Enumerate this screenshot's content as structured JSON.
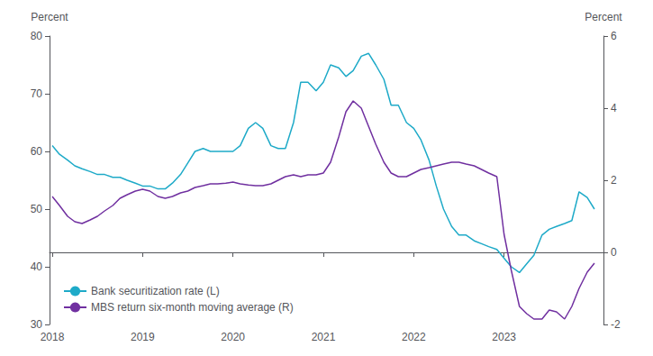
{
  "chart_data": {
    "type": "line",
    "ylabel": "Percent",
    "y2label": "Percent",
    "x": [
      2018.0,
      2018.08,
      2018.17,
      2018.25,
      2018.33,
      2018.42,
      2018.5,
      2018.58,
      2018.67,
      2018.75,
      2018.83,
      2018.92,
      2019.0,
      2019.08,
      2019.17,
      2019.25,
      2019.33,
      2019.42,
      2019.5,
      2019.58,
      2019.67,
      2019.75,
      2019.83,
      2019.92,
      2020.0,
      2020.08,
      2020.17,
      2020.25,
      2020.33,
      2020.42,
      2020.5,
      2020.58,
      2020.67,
      2020.75,
      2020.83,
      2020.92,
      2021.0,
      2021.08,
      2021.17,
      2021.25,
      2021.33,
      2021.42,
      2021.5,
      2021.58,
      2021.67,
      2021.75,
      2021.83,
      2021.92,
      2022.0,
      2022.08,
      2022.17,
      2022.25,
      2022.33,
      2022.42,
      2022.5,
      2022.58,
      2022.67,
      2022.75,
      2022.83,
      2022.92,
      2023.0,
      2023.08,
      2023.17,
      2023.25,
      2023.33,
      2023.42,
      2023.5,
      2023.58,
      2023.67,
      2023.75,
      2023.83,
      2023.92,
      2024.0
    ],
    "series": [
      {
        "name": "Bank securitization rate (L)",
        "color": "#1EAAC8",
        "axis": "y",
        "values": [
          61,
          59.5,
          58.5,
          57.5,
          57.0,
          56.5,
          56.0,
          56.0,
          55.5,
          55.5,
          55.0,
          54.5,
          54.0,
          54.0,
          53.5,
          53.5,
          54.5,
          56.0,
          58.0,
          60.0,
          60.5,
          60.0,
          60.0,
          60.0,
          60.0,
          61.0,
          64.0,
          65.0,
          64.0,
          61.0,
          60.5,
          60.5,
          65.0,
          72.0,
          72.0,
          70.5,
          72.0,
          75.0,
          74.5,
          73.0,
          74.0,
          76.5,
          77.0,
          75.0,
          72.5,
          68.0,
          68.0,
          65.0,
          64.0,
          62.0,
          58.5,
          54.0,
          50.0,
          47.0,
          45.5,
          45.5,
          44.5,
          44.0,
          43.5,
          43.0,
          41.5,
          40.0,
          39.0,
          40.5,
          42.0,
          45.5,
          46.5,
          47.0,
          47.5,
          48.0,
          53.0,
          52.0,
          50.0
        ]
      },
      {
        "name": "MBS return six-month moving average (R)",
        "color": "#7030A0",
        "axis": "y2",
        "values": [
          1.55,
          1.3,
          1.0,
          0.85,
          0.8,
          0.9,
          1.0,
          1.15,
          1.3,
          1.5,
          1.6,
          1.7,
          1.75,
          1.7,
          1.55,
          1.5,
          1.55,
          1.65,
          1.7,
          1.8,
          1.85,
          1.9,
          1.9,
          1.92,
          1.95,
          1.9,
          1.87,
          1.85,
          1.85,
          1.9,
          2.0,
          2.1,
          2.15,
          2.1,
          2.15,
          2.15,
          2.2,
          2.5,
          3.2,
          3.9,
          4.2,
          4.0,
          3.5,
          3.0,
          2.5,
          2.2,
          2.1,
          2.1,
          2.2,
          2.3,
          2.35,
          2.4,
          2.45,
          2.5,
          2.5,
          2.45,
          2.4,
          2.3,
          2.2,
          2.1,
          0.5,
          -0.5,
          -1.5,
          -1.7,
          -1.85,
          -1.85,
          -1.6,
          -1.65,
          -1.85,
          -1.5,
          -1.0,
          -0.55,
          -0.3
        ]
      }
    ],
    "xlim": [
      2017.97,
      2024.1
    ],
    "xticks": [
      2018,
      2019,
      2020,
      2021,
      2022,
      2023
    ],
    "ylim": [
      30,
      80
    ],
    "yticks": [
      30,
      40,
      50,
      60,
      70,
      80
    ],
    "y2lim": [
      -2,
      6
    ],
    "y2ticks": [
      -2,
      0,
      2,
      4,
      6
    ],
    "legend": "lower left",
    "grid": false
  }
}
